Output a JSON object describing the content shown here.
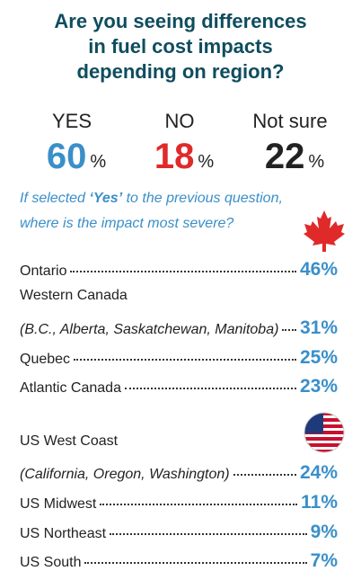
{
  "header": {
    "title": [
      "Are you seeing differences",
      "in fuel cost impacts",
      "depending on region?"
    ]
  },
  "answers": [
    {
      "label": "YES",
      "value": "60",
      "unit": "%"
    },
    {
      "label": "NO",
      "value": "18",
      "unit": "%"
    },
    {
      "label": "Not sure",
      "value": "22",
      "unit": "%"
    }
  ],
  "question": {
    "line1": [
      "If selected ",
      "‘Yes’",
      " to the previous question,"
    ],
    "line2": "where is the impact most severe?"
  },
  "regions": [
    {
      "name": "Ontario",
      "value": "46%"
    },
    {
      "name": "Western Canada"
    },
    {
      "name": "(B.C., Alberta, Saskatchewan, Manitoba)",
      "value": "31%"
    },
    {
      "name": "Quebec",
      "value": "25%"
    },
    {
      "name": "Atlantic Canada",
      "value": "23%"
    },
    {
      "name": "US West Coast"
    },
    {
      "name": "(California, Oregon, Washington)",
      "value": "24%"
    },
    {
      "name": "US Midwest",
      "value": "11%"
    },
    {
      "name": "US Northeast",
      "value": "9%"
    },
    {
      "name": "US South",
      "value": "7%"
    }
  ]
}
